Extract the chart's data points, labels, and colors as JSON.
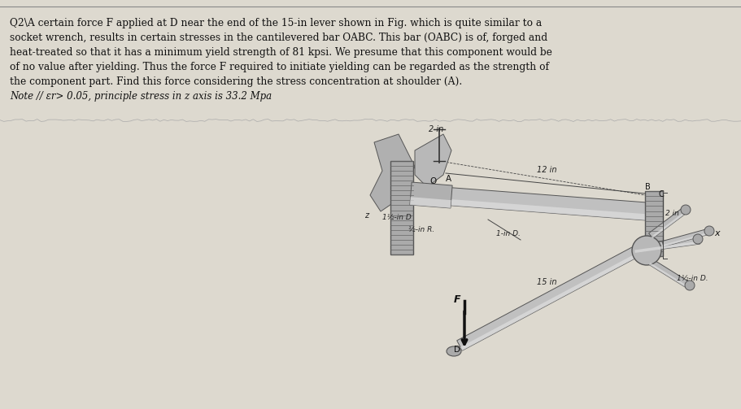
{
  "background_color": "#ccc8be",
  "paper_color": "#ddd9cf",
  "text_color": "#111111",
  "fig_width": 9.11,
  "fig_height": 5.03,
  "dpi": 100,
  "question_text_lines": [
    "Q2\\A certain force F applied at D near the end of the 15-in lever shown in Fig. which is quite similar to a",
    "socket wrench, results in certain stresses in the cantilevered bar OABC. This bar (OABC) is of, forged and",
    "heat-treated so that it has a minimum yield strength of 81 kpsi. We presume that this component would be",
    "of no value after yielding. Thus the force F required to initiate yielding can be regarded as the strength of",
    "the component part. Find this force considering the stress concentration at shoulder (A).",
    "Note // εr> 0.05, principle stress in z axis is 33.2 Mpa"
  ],
  "wall_color": "#999999",
  "bar_color": "#b8b8b8",
  "bar_highlight": "#d8d8d8",
  "bar_edge": "#555555"
}
